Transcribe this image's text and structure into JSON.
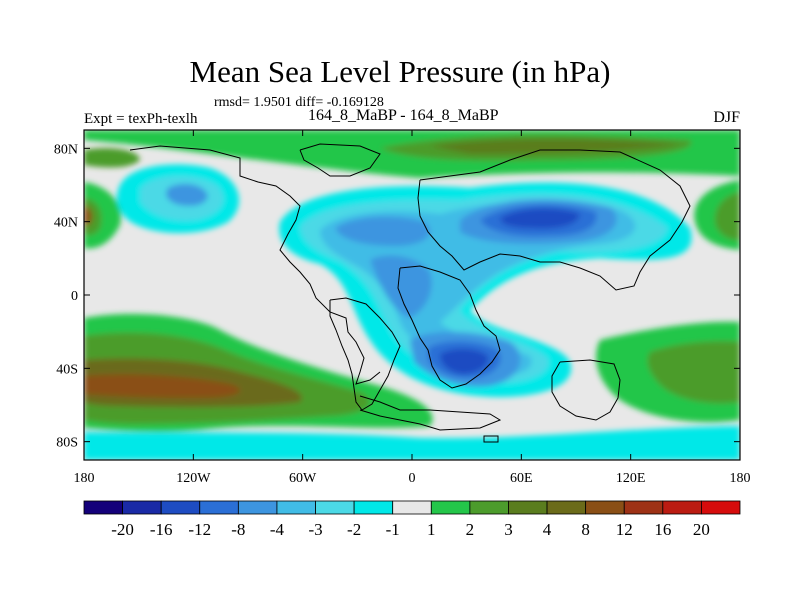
{
  "header": {
    "title": "Mean Sea Level Pressure (in hPa)",
    "stats": "rmsd= 1.9501 diff= -0.169128",
    "expt": "Expt = texPh-texlh",
    "subtitle": "164_8_MaBP - 164_8_MaBP",
    "season": "DJF"
  },
  "map": {
    "background_color": "#e8e8e8",
    "y_ticks": [
      {
        "label": "80N",
        "lat": 80
      },
      {
        "label": "40N",
        "lat": 40
      },
      {
        "label": "0",
        "lat": 0
      },
      {
        "label": "40S",
        "lat": -40
      },
      {
        "label": "80S",
        "lat": -80
      }
    ],
    "x_ticks": [
      {
        "label": "180",
        "lon": -180
      },
      {
        "label": "120W",
        "lon": -120
      },
      {
        "label": "60W",
        "lon": -60
      },
      {
        "label": "0",
        "lon": 0
      },
      {
        "label": "60E",
        "lon": 60
      },
      {
        "label": "120E",
        "lon": 120
      },
      {
        "label": "180",
        "lon": 180
      }
    ]
  },
  "colorbar": {
    "colors": [
      "#14007a",
      "#1a2aa6",
      "#1e4cc2",
      "#2b6fd6",
      "#3d95e0",
      "#41bce6",
      "#4bd9e6",
      "#00e8e8",
      "#e8e8e8",
      "#24c64a",
      "#4c9c2c",
      "#5a7d1e",
      "#6b6b1a",
      "#8a4f16",
      "#9e3216",
      "#bb1c12",
      "#d60c0c"
    ],
    "labels": [
      "-20",
      "-16",
      "-12",
      "-8",
      "-4",
      "-3",
      "-2",
      "-1",
      "1",
      "2",
      "3",
      "4",
      "8",
      "12",
      "16",
      "20"
    ]
  }
}
